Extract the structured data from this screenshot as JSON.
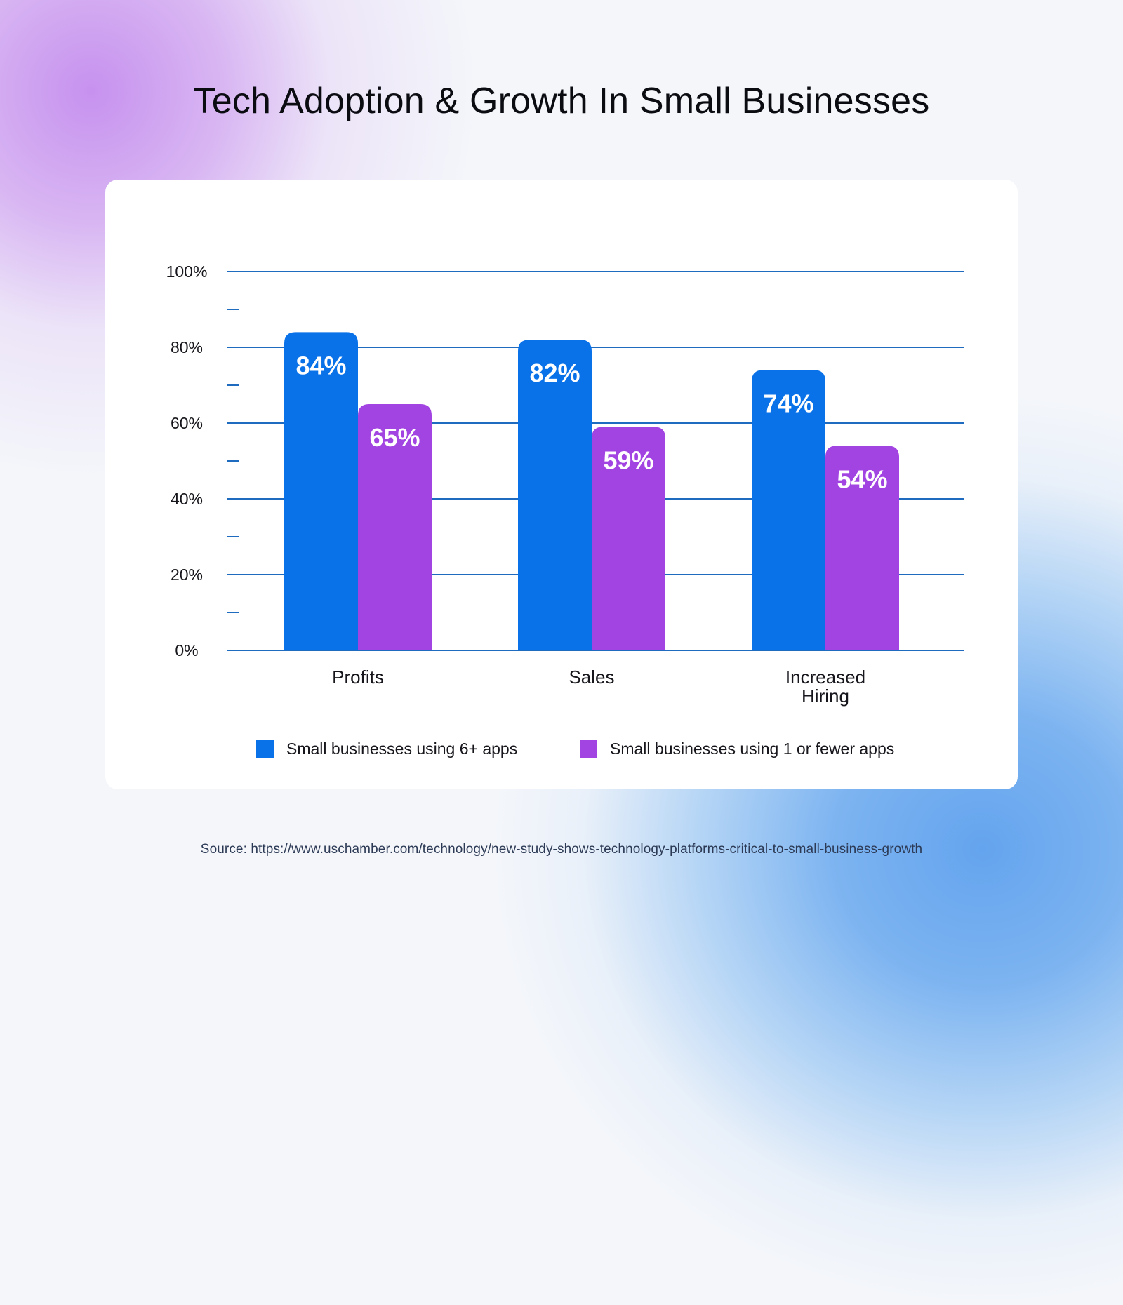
{
  "title": "Tech Adoption & Growth In Small Businesses",
  "source": "Source: https://www.uschamber.com/technology/new-study-shows-technology-platforms-critical-to-small-business-growth",
  "colors": {
    "series_6plus": "#0a72e8",
    "series_1orfewer": "#a244e2",
    "gridline": "#1f6bbf",
    "bar_label": "#ffffff",
    "axis_text": "#16161c"
  },
  "chart_data": {
    "type": "bar",
    "title": "Tech Adoption & Growth In Small Businesses",
    "xlabel": "",
    "ylabel": "",
    "categories": [
      "Profits",
      "Sales",
      "Increased Hiring"
    ],
    "category_lines": [
      [
        "Profits"
      ],
      [
        "Sales"
      ],
      [
        "Increased",
        "Hiring"
      ]
    ],
    "series": [
      {
        "name": "Small businesses using 6+ apps",
        "values": [
          84,
          82,
          74
        ],
        "labels": [
          "84%",
          "82%",
          "74%"
        ]
      },
      {
        "name": "Small businesses using 1 or fewer apps",
        "values": [
          65,
          59,
          54
        ],
        "labels": [
          "65%",
          "59%",
          "54%"
        ]
      }
    ],
    "ylim": [
      0,
      100
    ],
    "yticks": [
      0,
      20,
      40,
      60,
      80,
      100
    ],
    "ytick_labels": [
      "0%",
      "20%",
      "40%",
      "60%",
      "80%",
      "100%"
    ],
    "minor_yticks": [
      10,
      30,
      50,
      70,
      90
    ],
    "grid": true,
    "legend_position": "bottom"
  }
}
